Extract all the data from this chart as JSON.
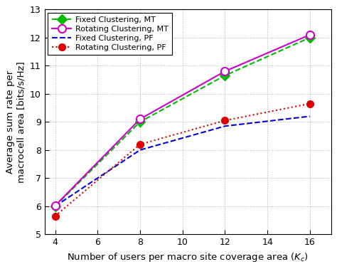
{
  "x": [
    4,
    8,
    12,
    16
  ],
  "fixed_mt": [
    6.0,
    9.0,
    10.65,
    12.0
  ],
  "rotating_mt": [
    6.02,
    9.1,
    10.8,
    12.1
  ],
  "fixed_pf": [
    6.0,
    8.0,
    8.85,
    9.2
  ],
  "rotating_pf": [
    5.65,
    8.2,
    9.05,
    9.65
  ],
  "xlabel": "Number of users per macro site coverage area ($K_c$)",
  "ylabel": "Average sum rate per\nmacrocell area [bits/s/Hz]",
  "xlim": [
    3.5,
    17
  ],
  "ylim": [
    5,
    13
  ],
  "xticks": [
    4,
    6,
    8,
    10,
    12,
    14,
    16
  ],
  "yticks": [
    5,
    6,
    7,
    8,
    9,
    10,
    11,
    12,
    13
  ],
  "legend_labels": [
    "Fixed Clustering, MT",
    "Rotating Clustering, MT",
    "Fixed Clustering, PF",
    "Rotating Clustering, PF"
  ],
  "colors": {
    "fixed_mt": "#00bb00",
    "rotating_mt": "#cc00cc",
    "fixed_pf": "#0000dd",
    "rotating_pf": "#dd0000"
  },
  "bg_color": "#ffffff",
  "figsize": [
    4.74,
    3.78
  ],
  "dpi": 100
}
